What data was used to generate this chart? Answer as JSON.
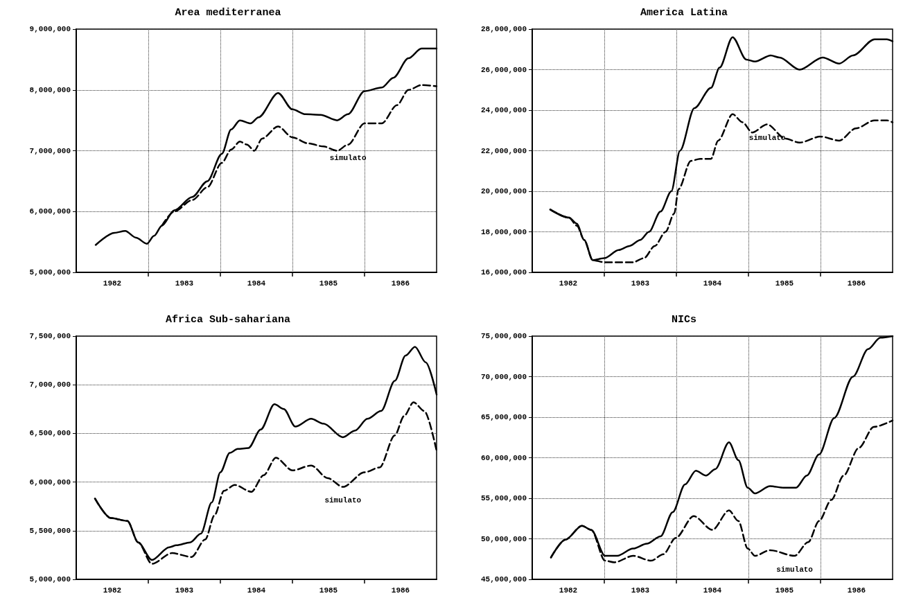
{
  "chart_data": [
    {
      "type": "line",
      "title": "Area mediterranea",
      "grid": true,
      "marker": "none",
      "xlim": [
        1982,
        1987
      ],
      "xticks": [
        {
          "value": 1982.5,
          "label": "1982"
        },
        {
          "value": 1983,
          "label": null
        },
        {
          "value": 1983.5,
          "label": "1983"
        },
        {
          "value": 1984,
          "label": null
        },
        {
          "value": 1984.5,
          "label": "1984"
        },
        {
          "value": 1985,
          "label": null
        },
        {
          "value": 1985.5,
          "label": "1985"
        },
        {
          "value": 1986,
          "label": null
        },
        {
          "value": 1986.5,
          "label": "1986"
        }
      ],
      "ylim": [
        5000000,
        9000000
      ],
      "yticks": [
        {
          "value": 5000000,
          "label": "5,000,000"
        },
        {
          "value": 6000000,
          "label": "6,000,000"
        },
        {
          "value": 7000000,
          "label": "7,000,000"
        },
        {
          "value": 8000000,
          "label": "8,000,000"
        },
        {
          "value": 9000000,
          "label": "9,000,000"
        }
      ],
      "series": [
        {
          "color": "#000000",
          "line_style": "solid",
          "x": [
            1982.27,
            1982.53,
            1982.68,
            1982.83,
            1982.98,
            1983.08,
            1983.19,
            1983.36,
            1983.61,
            1983.82,
            1984.02,
            1984.15,
            1984.27,
            1984.42,
            1984.53,
            1984.8,
            1985.0,
            1985.18,
            1985.39,
            1985.62,
            1985.77,
            1986.0,
            1986.24,
            1986.4,
            1986.61,
            1986.79,
            1987.0
          ],
          "values": [
            5450000,
            5650000,
            5680000,
            5570000,
            5470000,
            5600000,
            5770000,
            6020000,
            6240000,
            6500000,
            6950000,
            7350000,
            7500000,
            7450000,
            7550000,
            7950000,
            7680000,
            7600000,
            7590000,
            7500000,
            7600000,
            7980000,
            8040000,
            8200000,
            8520000,
            8680000,
            8680000
          ]
        },
        {
          "name": "simulato",
          "color": "#000000",
          "line_style": "dashed",
          "x": [
            1983.19,
            1983.36,
            1983.61,
            1983.82,
            1984.02,
            1984.15,
            1984.27,
            1984.37,
            1984.47,
            1984.58,
            1984.8,
            1985.0,
            1985.22,
            1985.43,
            1985.62,
            1985.77,
            1986.0,
            1986.24,
            1986.45,
            1986.61,
            1986.79,
            1987.0
          ],
          "values": [
            5770000,
            6000000,
            6190000,
            6400000,
            6800000,
            7020000,
            7150000,
            7100000,
            7000000,
            7200000,
            7400000,
            7220000,
            7120000,
            7070000,
            7000000,
            7100000,
            7450000,
            7450000,
            7750000,
            8000000,
            8080000,
            8060000
          ]
        }
      ]
    },
    {
      "type": "line",
      "title": "America Latina",
      "grid": true,
      "marker": "none",
      "xlim": [
        1982,
        1987
      ],
      "xticks": [
        {
          "value": 1982.5,
          "label": "1982"
        },
        {
          "value": 1983,
          "label": null
        },
        {
          "value": 1983.5,
          "label": "1983"
        },
        {
          "value": 1984,
          "label": null
        },
        {
          "value": 1984.5,
          "label": "1984"
        },
        {
          "value": 1985,
          "label": null
        },
        {
          "value": 1985.5,
          "label": "1985"
        },
        {
          "value": 1986,
          "label": null
        },
        {
          "value": 1986.5,
          "label": "1986"
        }
      ],
      "ylim": [
        16000000,
        28000000
      ],
      "yticks": [
        {
          "value": 16000000,
          "label": "16,000,000"
        },
        {
          "value": 18000000,
          "label": "18,000,000"
        },
        {
          "value": 20000000,
          "label": "20,000,000"
        },
        {
          "value": 22000000,
          "label": "22,000,000"
        },
        {
          "value": 24000000,
          "label": "24,000,000"
        },
        {
          "value": 26000000,
          "label": "26,000,000"
        },
        {
          "value": 28000000,
          "label": "28,000,000"
        }
      ],
      "series": [
        {
          "color": "#000000",
          "line_style": "solid",
          "x": [
            1982.25,
            1982.51,
            1982.62,
            1982.72,
            1982.84,
            1983.0,
            1983.2,
            1983.35,
            1983.5,
            1983.62,
            1983.78,
            1983.93,
            1984.05,
            1984.25,
            1984.48,
            1984.6,
            1984.78,
            1984.97,
            1985.09,
            1985.31,
            1985.43,
            1985.71,
            1986.03,
            1986.26,
            1986.45,
            1986.75,
            1986.92,
            1987.0
          ],
          "values": [
            19100000,
            18700000,
            18400000,
            17600000,
            16600000,
            16700000,
            17100000,
            17300000,
            17600000,
            18000000,
            19000000,
            20000000,
            22000000,
            24100000,
            25100000,
            26100000,
            27600000,
            26500000,
            26400000,
            26700000,
            26600000,
            26000000,
            26600000,
            26300000,
            26700000,
            27500000,
            27500000,
            27400000
          ]
        },
        {
          "name": "simulato",
          "color": "#000000",
          "line_style": "dashed",
          "x": [
            1982.25,
            1982.51,
            1982.62,
            1982.72,
            1982.84,
            1983.0,
            1983.2,
            1983.4,
            1983.55,
            1983.7,
            1983.85,
            1983.97,
            1984.03,
            1984.2,
            1984.33,
            1984.48,
            1984.58,
            1984.78,
            1984.92,
            1985.05,
            1985.26,
            1985.51,
            1985.71,
            1986.0,
            1986.26,
            1986.49,
            1986.75,
            1986.92,
            1987.0
          ],
          "values": [
            19100000,
            18700000,
            18300000,
            17600000,
            16600000,
            16500000,
            16500000,
            16500000,
            16700000,
            17300000,
            18000000,
            18900000,
            20100000,
            21500000,
            21600000,
            21600000,
            22500000,
            23800000,
            23400000,
            22900000,
            23300000,
            22600000,
            22400000,
            22700000,
            22500000,
            23100000,
            23500000,
            23500000,
            23400000
          ]
        }
      ]
    },
    {
      "type": "line",
      "title": "Africa Sub-sahariana",
      "grid": "y",
      "marker": "none",
      "xlim": [
        1982,
        1987
      ],
      "xticks": [
        {
          "value": 1982.5,
          "label": "1982"
        },
        {
          "value": 1983,
          "label": null
        },
        {
          "value": 1983.5,
          "label": "1983"
        },
        {
          "value": 1984,
          "label": null
        },
        {
          "value": 1984.5,
          "label": "1984"
        },
        {
          "value": 1985,
          "label": null
        },
        {
          "value": 1985.5,
          "label": "1985"
        },
        {
          "value": 1986,
          "label": null
        },
        {
          "value": 1986.5,
          "label": "1986"
        }
      ],
      "ylim": [
        5000000,
        7500000
      ],
      "yticks": [
        {
          "value": 5000000,
          "label": "5,000,000"
        },
        {
          "value": 5500000,
          "label": "5,500,000"
        },
        {
          "value": 6000000,
          "label": "6,000,000"
        },
        {
          "value": 6500000,
          "label": "6,500,000"
        },
        {
          "value": 7000000,
          "label": "7,000,000"
        },
        {
          "value": 7500000,
          "label": "7,500,000"
        }
      ],
      "series": [
        {
          "color": "#000000",
          "line_style": "solid",
          "x": [
            1982.26,
            1982.48,
            1982.71,
            1982.86,
            1983.05,
            1983.29,
            1983.39,
            1983.58,
            1983.73,
            1983.88,
            1984.0,
            1984.13,
            1984.24,
            1984.39,
            1984.56,
            1984.75,
            1984.88,
            1985.04,
            1985.26,
            1985.43,
            1985.7,
            1985.87,
            1986.04,
            1986.23,
            1986.42,
            1986.57,
            1986.7,
            1986.85,
            1987.0
          ],
          "values": [
            5830000,
            5630000,
            5600000,
            5380000,
            5200000,
            5330000,
            5350000,
            5380000,
            5470000,
            5790000,
            6100000,
            6300000,
            6340000,
            6350000,
            6540000,
            6800000,
            6750000,
            6570000,
            6650000,
            6600000,
            6460000,
            6530000,
            6650000,
            6730000,
            7040000,
            7300000,
            7390000,
            7230000,
            6900000
          ]
        },
        {
          "name": "simulato",
          "color": "#000000",
          "line_style": "dashed",
          "x": [
            1982.26,
            1982.48,
            1982.71,
            1982.86,
            1983.05,
            1983.33,
            1983.6,
            1983.79,
            1983.92,
            1984.05,
            1984.2,
            1984.43,
            1984.6,
            1984.77,
            1985.0,
            1985.26,
            1985.49,
            1985.7,
            1986.0,
            1986.21,
            1986.42,
            1986.55,
            1986.68,
            1986.83,
            1987.0
          ],
          "values": [
            5830000,
            5630000,
            5600000,
            5380000,
            5160000,
            5270000,
            5230000,
            5410000,
            5660000,
            5910000,
            5970000,
            5900000,
            6070000,
            6250000,
            6120000,
            6170000,
            6040000,
            5950000,
            6100000,
            6150000,
            6480000,
            6680000,
            6820000,
            6730000,
            6320000
          ]
        }
      ]
    },
    {
      "type": "line",
      "title": "NICs",
      "grid": true,
      "marker": "none",
      "xlim": [
        1982,
        1987
      ],
      "xticks": [
        {
          "value": 1982.5,
          "label": "1982"
        },
        {
          "value": 1983,
          "label": null
        },
        {
          "value": 1983.5,
          "label": "1983"
        },
        {
          "value": 1984,
          "label": null
        },
        {
          "value": 1984.5,
          "label": "1984"
        },
        {
          "value": 1985,
          "label": null
        },
        {
          "value": 1985.5,
          "label": "1985"
        },
        {
          "value": 1986,
          "label": null
        },
        {
          "value": 1986.5,
          "label": "1986"
        }
      ],
      "ylim": [
        45000000,
        75000000
      ],
      "yticks": [
        {
          "value": 45000000,
          "label": "45,000,000"
        },
        {
          "value": 50000000,
          "label": "50,000,000"
        },
        {
          "value": 55000000,
          "label": "55,000,000"
        },
        {
          "value": 60000000,
          "label": "60,000,000"
        },
        {
          "value": 65000000,
          "label": "65,000,000"
        },
        {
          "value": 70000000,
          "label": "70,000,000"
        },
        {
          "value": 75000000,
          "label": "75,000,000"
        }
      ],
      "series": [
        {
          "color": "#000000",
          "line_style": "solid",
          "x": [
            1982.26,
            1982.46,
            1982.69,
            1982.82,
            1983.01,
            1983.18,
            1983.4,
            1983.59,
            1983.78,
            1983.95,
            1984.12,
            1984.27,
            1984.41,
            1984.54,
            1984.73,
            1984.86,
            1984.99,
            1985.09,
            1985.3,
            1985.49,
            1985.66,
            1985.81,
            1985.98,
            1986.19,
            1986.45,
            1986.66,
            1986.83,
            1987.0
          ],
          "values": [
            47700000,
            49900000,
            51600000,
            51100000,
            47900000,
            47900000,
            48800000,
            49400000,
            50300000,
            53300000,
            56700000,
            58400000,
            57800000,
            58600000,
            61900000,
            59700000,
            56300000,
            55600000,
            56500000,
            56300000,
            56300000,
            57800000,
            60400000,
            64900000,
            70000000,
            73400000,
            74800000,
            75000000
          ]
        },
        {
          "name": "simulato",
          "color": "#000000",
          "line_style": "dashed",
          "x": [
            1982.26,
            1982.46,
            1982.69,
            1982.82,
            1983.01,
            1983.14,
            1983.4,
            1983.65,
            1983.82,
            1983.99,
            1984.24,
            1984.5,
            1984.73,
            1984.86,
            1984.99,
            1985.09,
            1985.3,
            1985.64,
            1985.83,
            1985.98,
            1986.15,
            1986.32,
            1986.53,
            1986.74,
            1987.0
          ],
          "values": [
            47700000,
            49900000,
            51600000,
            51100000,
            47300000,
            47100000,
            47900000,
            47300000,
            48100000,
            50100000,
            52800000,
            51100000,
            53500000,
            52200000,
            48800000,
            47900000,
            48600000,
            47900000,
            49600000,
            52200000,
            54800000,
            57800000,
            61200000,
            63800000,
            64600000
          ]
        }
      ]
    }
  ]
}
